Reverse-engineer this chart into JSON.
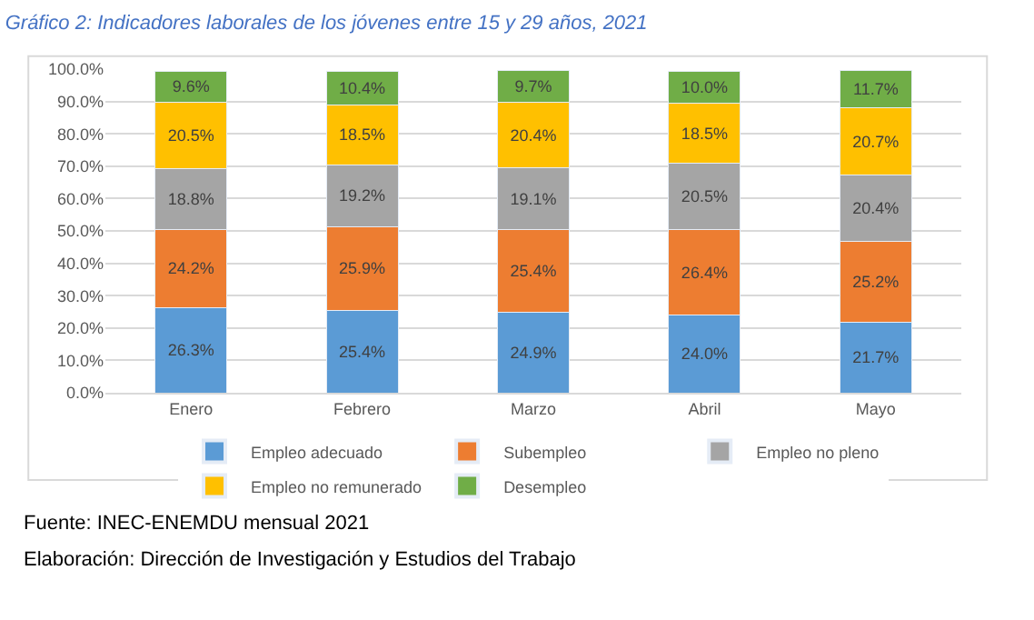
{
  "chart_data": {
    "type": "bar",
    "stacked": true,
    "title": "Gráfico 2: Indicadores laborales de los jóvenes entre 15 y 29 años, 2021",
    "categories": [
      "Enero",
      "Febrero",
      "Marzo",
      "Abril",
      "Mayo"
    ],
    "series": [
      {
        "name": "Empleo adecuado",
        "color": "#5b9bd5",
        "values": [
          26.3,
          25.4,
          24.9,
          24.0,
          21.7
        ]
      },
      {
        "name": "Subempleo",
        "color": "#ed7d31",
        "values": [
          24.2,
          25.9,
          25.4,
          26.4,
          25.2
        ]
      },
      {
        "name": "Empleo no pleno",
        "color": "#a5a5a5",
        "values": [
          18.8,
          19.2,
          19.1,
          20.5,
          20.4
        ]
      },
      {
        "name": "Empleo no remunerado",
        "color": "#ffc000",
        "values": [
          20.5,
          18.5,
          20.4,
          18.5,
          20.7
        ]
      },
      {
        "name": "Desempleo",
        "color": "#70ad47",
        "values": [
          9.6,
          10.4,
          9.7,
          10.0,
          11.7
        ]
      }
    ],
    "value_labels": [
      [
        "26.3%",
        "25.4%",
        "24.9%",
        "24.0%",
        "21.7%"
      ],
      [
        "24.2%",
        "25.9%",
        "25.4%",
        "26.4%",
        "25.2%"
      ],
      [
        "18.8%",
        "19.2%",
        "19.1%",
        "20.5%",
        "20.4%"
      ],
      [
        "20.5%",
        "18.5%",
        "20.4%",
        "18.5%",
        "20.7%"
      ],
      [
        "9.6%",
        "10.4%",
        "9.7%",
        "10.0%",
        "11.7%"
      ]
    ],
    "ylim": [
      0,
      100
    ],
    "yticks": [
      {
        "value": 0,
        "label": "0.0%"
      },
      {
        "value": 10,
        "label": "10.0%"
      },
      {
        "value": 20,
        "label": "20.0%"
      },
      {
        "value": 30,
        "label": "30.0%"
      },
      {
        "value": 40,
        "label": "40.0%"
      },
      {
        "value": 50,
        "label": "50.0%"
      },
      {
        "value": 60,
        "label": "60.0%"
      },
      {
        "value": 70,
        "label": "70.0%"
      },
      {
        "value": 80,
        "label": "80.0%"
      },
      {
        "value": 90,
        "label": "90.0%"
      },
      {
        "value": 100,
        "label": "100.0%"
      }
    ],
    "grid": "y",
    "legend": "bottom",
    "annotations": [
      "Fuente: INEC-ENEMDU mensual 2021",
      "Elaboración: Dirección de Investigación y Estudios del Trabajo"
    ]
  }
}
